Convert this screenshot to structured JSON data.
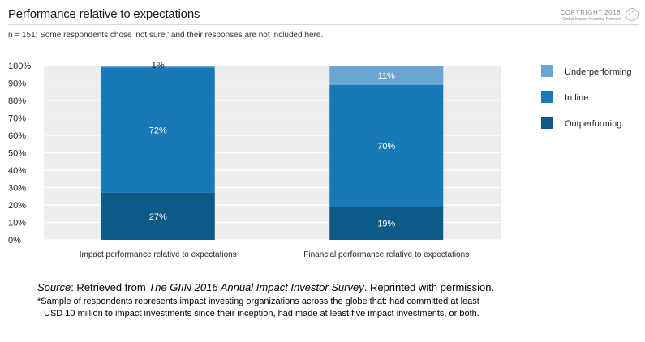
{
  "header": {
    "title": "Performance relative to expectations",
    "copyright": "COPYRIGHT 2016",
    "copyright_org": "Global Impact Investing Network",
    "note": "n = 151; Some respondents chose 'not sure,' and their responses are not included here."
  },
  "chart_data": {
    "type": "bar",
    "stacked": true,
    "categories": [
      "Impact performance relative to expectations",
      "Financial performance relative to expectations"
    ],
    "series": [
      {
        "name": "Outperforming",
        "values": [
          27,
          19
        ],
        "labels": [
          "27%",
          "19%"
        ],
        "color": "#0e5a87"
      },
      {
        "name": "In line",
        "values": [
          72,
          70
        ],
        "labels": [
          "72%",
          "70%"
        ],
        "color": "#1779b8"
      },
      {
        "name": "Underperforming",
        "values": [
          1,
          11
        ],
        "labels": [
          "1%",
          "11%"
        ],
        "color": "#6aa6d1"
      }
    ],
    "ylim": [
      0,
      100
    ],
    "yticks": [
      "0%",
      "10%",
      "20%",
      "30%",
      "40%",
      "50%",
      "60%",
      "70%",
      "80%",
      "90%",
      "100%"
    ],
    "grid": true,
    "background": "#ededed",
    "legend": {
      "placement": "right",
      "order": [
        "Underperforming",
        "In line",
        "Outperforming"
      ]
    }
  },
  "caption": {
    "source_label": "Source",
    "retrieved": ": Retrieved from ",
    "survey_title": "The GIIN 2016 Annual Impact Investor Survey",
    "reprint": ". Reprinted with permission."
  },
  "footnote": {
    "line1": "*Sample of respondents represents impact investing organizations across the globe that: had committed at least",
    "line2": "USD 10 million to impact investments since their inception, had made at least five impact investments, or both."
  }
}
